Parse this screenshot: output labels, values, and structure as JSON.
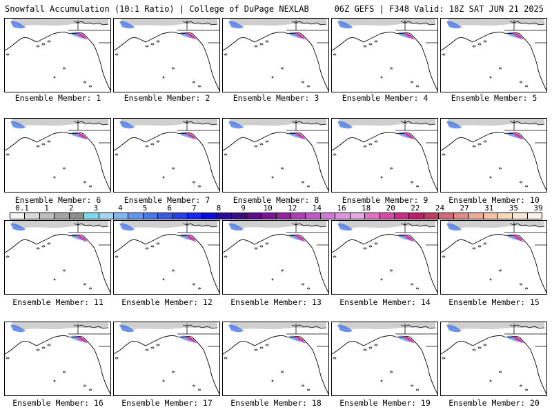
{
  "header": {
    "left": "Snowfall Accumulation (10:1 Ratio) | College of DuPage NEXLAB",
    "right": "06Z GEFS | F348 Valid: 18Z SAT JUN 21 2025"
  },
  "colorbar": {
    "ticks": [
      "0.1",
      "1",
      "2",
      "3",
      "4",
      "5",
      "6",
      "7",
      "8",
      "9",
      "10",
      "12",
      "14",
      "16",
      "18",
      "20",
      "22",
      "24",
      "27",
      "31",
      "35",
      "39"
    ],
    "colors": [
      "#f4f4f4",
      "#d8d8d8",
      "#bdbdbd",
      "#a4a4a4",
      "#8c8c8c",
      "#7dd8ec",
      "#a8d4f4",
      "#82b6f0",
      "#6296ea",
      "#4a78e6",
      "#3a5ae4",
      "#2640e8",
      "#1626f2",
      "#0a0ada",
      "#2a0a9a",
      "#3c0a82",
      "#5a0a8c",
      "#7a1496",
      "#9422a2",
      "#ae3eb6",
      "#c05ac8",
      "#d07ad6",
      "#dc96de",
      "#e2a8e0",
      "#e070c0",
      "#d84aa4",
      "#cc2c86",
      "#c01c6c",
      "#c03c5c",
      "#d06a78",
      "#e08a88",
      "#ecaa9a",
      "#f4c2a8",
      "#f8d8bc",
      "#fbe8d4",
      "#fef4e8"
    ]
  },
  "panels": [
    {
      "label": "Ensemble Member: 1"
    },
    {
      "label": "Ensemble Member: 2"
    },
    {
      "label": "Ensemble Member: 3"
    },
    {
      "label": "Ensemble Member: 4"
    },
    {
      "label": "Ensemble Member: 5"
    },
    {
      "label": "Ensemble Member: 6"
    },
    {
      "label": "Ensemble Member: 7"
    },
    {
      "label": "Ensemble Member: 8"
    },
    {
      "label": "Ensemble Member: 9"
    },
    {
      "label": "Ensemble Member: 10"
    },
    {
      "label": "Ensemble Member: 11"
    },
    {
      "label": "Ensemble Member: 12"
    },
    {
      "label": "Ensemble Member: 13"
    },
    {
      "label": "Ensemble Member: 14"
    },
    {
      "label": "Ensemble Member: 15"
    },
    {
      "label": "Ensemble Member: 16"
    },
    {
      "label": "Ensemble Member: 17"
    },
    {
      "label": "Ensemble Member: 18"
    },
    {
      "label": "Ensemble Member: 19"
    },
    {
      "label": "Ensemble Member: 20"
    }
  ]
}
